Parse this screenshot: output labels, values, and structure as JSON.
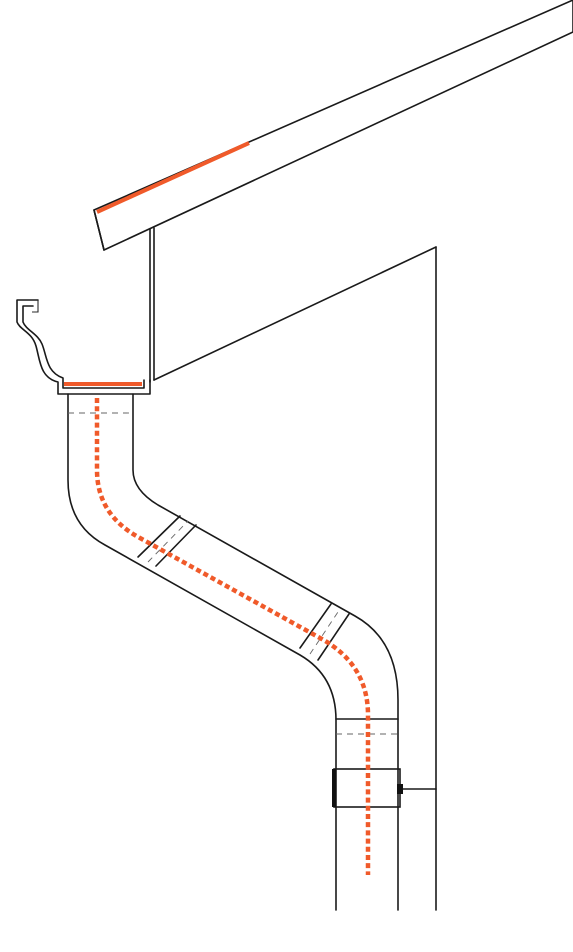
{
  "diagram": {
    "background_color": "#ffffff",
    "line_color": "#1a1a1a",
    "heating_cable_color": "#f05a2a",
    "parts": [
      "roof-edge",
      "fascia-board",
      "house-wall",
      "gutter",
      "downspout",
      "downspout-bracket",
      "heating-cable"
    ],
    "heating_cable_runs": [
      {
        "location": "roof-edge",
        "style": "solid"
      },
      {
        "location": "gutter-bottom",
        "style": "solid"
      },
      {
        "location": "downspout",
        "style": "dotted"
      }
    ]
  }
}
